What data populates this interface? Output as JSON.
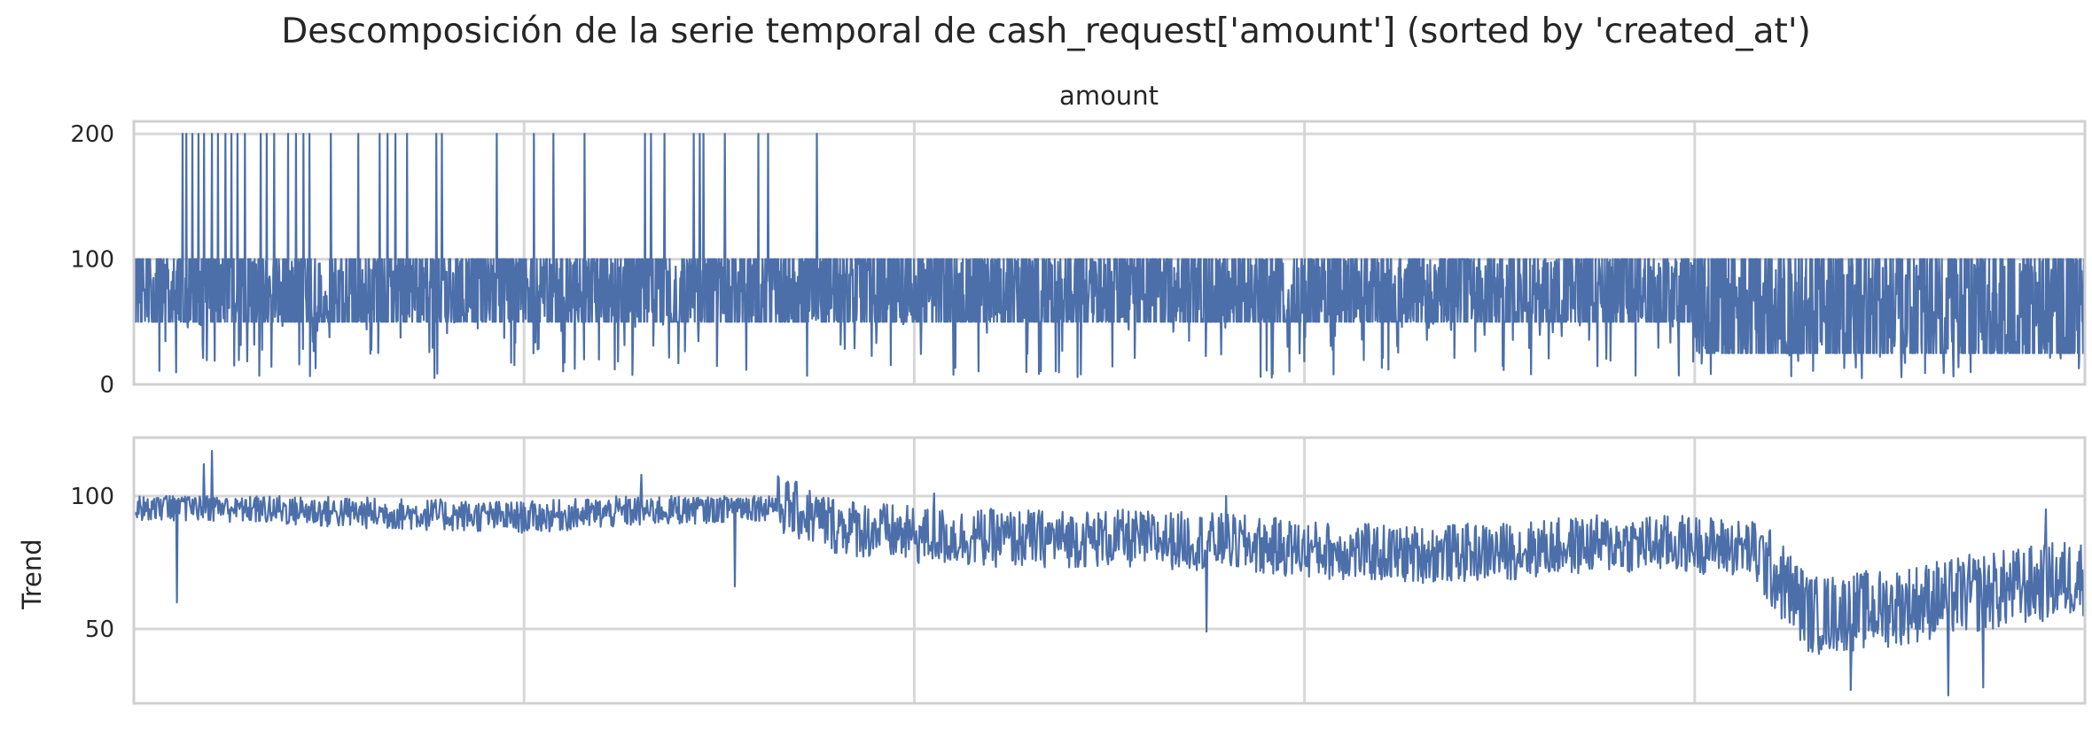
{
  "chart_data": {
    "title": "Descomposición de la serie temporal de cash_request['amount'] (sorted by 'created_at')",
    "type": "line",
    "color": "#4c6faa",
    "shared_x_ticks": 5,
    "panels": [
      {
        "name": "amount",
        "subtitle": "amount",
        "ylabel": "",
        "ylim": [
          0,
          210
        ],
        "yticks": [
          0,
          100,
          200
        ],
        "grid": true,
        "series": {
          "type": "line",
          "n_points": 4200,
          "band": [
            50,
            100
          ],
          "segments": [
            {
              "from": 0.0,
              "to": 0.26,
              "low_floor": 5,
              "spike_fraction": 0.5
            },
            {
              "from": 0.26,
              "to": 0.8,
              "low_floor": 5,
              "spike_fraction": 0.25
            },
            {
              "from": 0.8,
              "to": 1.0,
              "band": [
                25,
                100
              ],
              "low_floor": 5,
              "spike_fraction": 0.25
            }
          ],
          "peaks_200_at": [
            0.025,
            0.027,
            0.03,
            0.033,
            0.036,
            0.04,
            0.043,
            0.047,
            0.05,
            0.053,
            0.057,
            0.065,
            0.068,
            0.072,
            0.079,
            0.083,
            0.087,
            0.09,
            0.101,
            0.115,
            0.126,
            0.13,
            0.134,
            0.14,
            0.155,
            0.158,
            0.186,
            0.205,
            0.215,
            0.231,
            0.262,
            0.265,
            0.272,
            0.287,
            0.29,
            0.292,
            0.303,
            0.325,
            0.32,
            0.35
          ]
        }
      },
      {
        "name": "trend",
        "subtitle": "",
        "ylabel": "Trend",
        "ylim": [
          22,
          122
        ],
        "yticks": [
          50,
          100
        ],
        "grid": true,
        "series": {
          "type": "line",
          "n_points": 2400,
          "baseline": [
            [
              0.0,
              97
            ],
            [
              0.05,
              96
            ],
            [
              0.1,
              94
            ],
            [
              0.15,
              93
            ],
            [
              0.2,
              92
            ],
            [
              0.25,
              94
            ],
            [
              0.3,
              96
            ],
            [
              0.33,
              97
            ],
            [
              0.36,
              89
            ],
            [
              0.4,
              85
            ],
            [
              0.45,
              84
            ],
            [
              0.5,
              84
            ],
            [
              0.55,
              83
            ],
            [
              0.6,
              80
            ],
            [
              0.65,
              78
            ],
            [
              0.7,
              79
            ],
            [
              0.75,
              82
            ],
            [
              0.8,
              82
            ],
            [
              0.83,
              80
            ],
            [
              0.86,
              55
            ],
            [
              0.9,
              58
            ],
            [
              0.93,
              62
            ],
            [
              0.96,
              65
            ],
            [
              1.0,
              70
            ]
          ],
          "extremes": [
            {
              "x": 0.022,
              "y": 60
            },
            {
              "x": 0.036,
              "y": 112
            },
            {
              "x": 0.04,
              "y": 117
            },
            {
              "x": 0.26,
              "y": 108
            },
            {
              "x": 0.308,
              "y": 66
            },
            {
              "x": 0.41,
              "y": 53
            },
            {
              "x": 0.41,
              "y": 101
            },
            {
              "x": 0.55,
              "y": 49
            },
            {
              "x": 0.56,
              "y": 100
            },
            {
              "x": 0.88,
              "y": 27
            },
            {
              "x": 0.93,
              "y": 25
            },
            {
              "x": 0.948,
              "y": 28
            },
            {
              "x": 0.98,
              "y": 95
            }
          ]
        }
      }
    ]
  }
}
